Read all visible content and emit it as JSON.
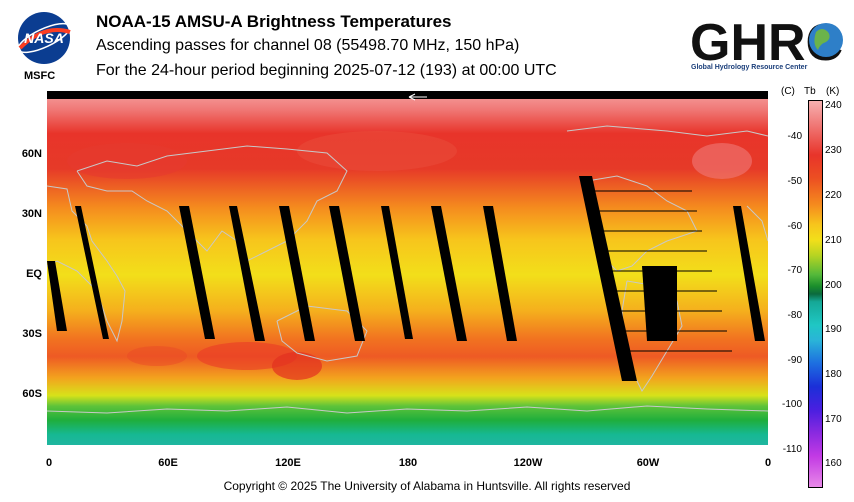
{
  "header": {
    "logo_left_text": "NASA",
    "logo_left_sub": "MSFC",
    "title": "NOAA-15 AMSU-A Brightness Temperatures",
    "subtitle": "Ascending passes for channel 08 (55498.70 MHz, 150 hPa)",
    "period": "For the 24-hour period beginning 2025-07-12 (193) at 00:00 UTC",
    "logo_right_text": "GHRC",
    "logo_right_sub": "Global Hydrology Resource Center"
  },
  "map": {
    "lat_labels": [
      "60N",
      "30N",
      "EQ",
      "30S",
      "60S"
    ],
    "lon_labels": [
      "0",
      "60E",
      "120E",
      "180",
      "120W",
      "60W",
      "0"
    ],
    "colors": {
      "warm_red": "#e8342a",
      "orange": "#f58c1e",
      "yellow": "#f2df1a",
      "green": "#1fae3c",
      "teal": "#16b892",
      "coast": "#c8c8c8"
    }
  },
  "colorbar": {
    "header_c": "(C)",
    "header_tb": "Tb",
    "header_k": "(K)",
    "celsius_ticks": [
      "-40",
      "-50",
      "-60",
      "-70",
      "-80",
      "-90",
      "-100",
      "-110"
    ],
    "kelvin_ticks": [
      "240",
      "230",
      "220",
      "210",
      "200",
      "190",
      "180",
      "170",
      "160"
    ]
  },
  "footer": {
    "copyright": "Copyright © 2025 The University of Alabama in Huntsville.  All rights reserved"
  }
}
